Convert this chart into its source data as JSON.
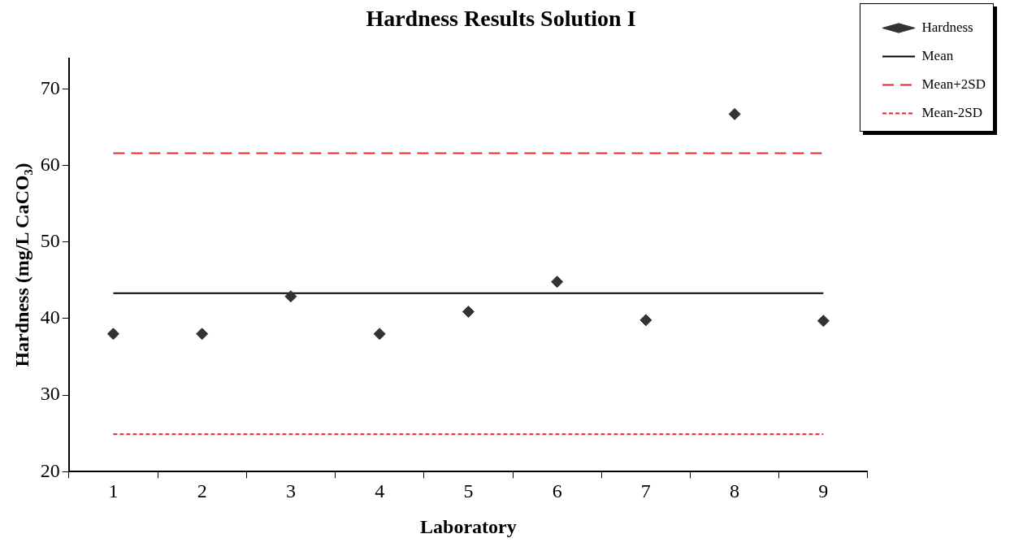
{
  "chart_data": {
    "type": "line",
    "title": "Hardness Results Solution I",
    "xlabel": "Laboratory",
    "ylabel": "Hardness (mg/L CaCO₃)",
    "categories": [
      "1",
      "2",
      "3",
      "4",
      "5",
      "6",
      "7",
      "8",
      "9"
    ],
    "series": [
      {
        "name": "Hardness",
        "type": "scatter",
        "marker": "diamond",
        "color": "#333333",
        "values": [
          38,
          38,
          42.9,
          38,
          40.9,
          44.8,
          39.8,
          66.7,
          39.7
        ]
      },
      {
        "name": "Mean",
        "type": "line",
        "line_style": "solid",
        "marker": "none",
        "color": "#000000",
        "values": [
          43.3,
          43.3,
          43.3,
          43.3,
          43.3,
          43.3,
          43.3,
          43.3,
          43.3
        ]
      },
      {
        "name": "Mean+2SD",
        "type": "line",
        "line_style": "dashed",
        "marker": "none",
        "color": "#e02828",
        "values": [
          61.6,
          61.6,
          61.6,
          61.6,
          61.6,
          61.6,
          61.6,
          61.6,
          61.6
        ]
      },
      {
        "name": "Mean-2SD",
        "type": "line",
        "line_style": "dotted",
        "marker": "none",
        "color": "#e02828",
        "values": [
          24.9,
          24.9,
          24.9,
          24.9,
          24.9,
          24.9,
          24.9,
          24.9,
          24.9
        ]
      }
    ],
    "ylim": [
      20,
      74
    ],
    "yticks": [
      20,
      30,
      40,
      50,
      60,
      70
    ],
    "grid": false,
    "legend": "top right"
  }
}
